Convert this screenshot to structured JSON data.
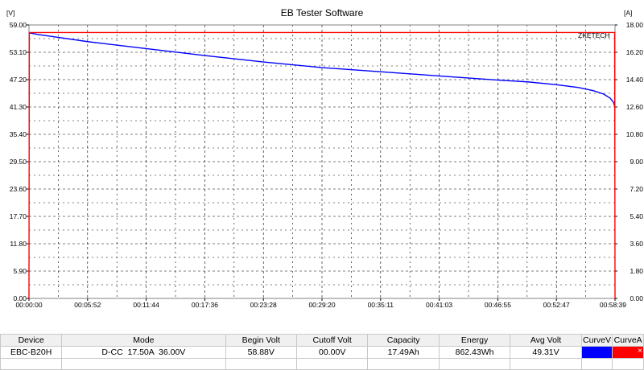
{
  "window": {
    "title": "EB Tester Software",
    "left_unit": "[V]",
    "right_unit": "[A]",
    "watermark": "ZKETECH"
  },
  "chart_data": {
    "type": "line",
    "title": "EB Tester Software",
    "ylabel": "[V]",
    "y2label": "[A]",
    "ylim": [
      0,
      59.0
    ],
    "y2lim": [
      0,
      18.0
    ],
    "xlim_seconds": [
      0,
      3519
    ],
    "x_tick_labels": [
      "00:00:00",
      "00:05:52",
      "00:11:44",
      "00:17:36",
      "00:23:28",
      "00:29:20",
      "00:35:11",
      "00:41:03",
      "00:46:55",
      "00:52:47",
      "00:58:39"
    ],
    "y_tick_labels": [
      "0.00",
      "5.90",
      "11.80",
      "17.70",
      "23.60",
      "29.50",
      "35.40",
      "41.30",
      "47.20",
      "53.10",
      "59.00"
    ],
    "y2_tick_labels": [
      "0.00",
      "1.80",
      "3.60",
      "5.40",
      "7.20",
      "9.00",
      "10.80",
      "12.60",
      "14.40",
      "16.20",
      "18.00"
    ],
    "grid": true,
    "series": [
      {
        "name": "CurveV",
        "color": "#0000ff",
        "axis": "left",
        "x": [
          "00:00:00",
          "00:01:00",
          "00:03:00",
          "00:05:52",
          "00:11:44",
          "00:17:36",
          "00:23:28",
          "00:29:20",
          "00:35:11",
          "00:41:03",
          "00:46:55",
          "00:50:00",
          "00:52:47",
          "00:55:00",
          "00:56:30",
          "00:57:30",
          "00:58:10",
          "00:58:30",
          "00:58:39"
        ],
        "values": [
          57.3,
          56.9,
          56.3,
          55.4,
          53.9,
          52.4,
          51.0,
          49.8,
          48.9,
          48.0,
          47.1,
          46.7,
          46.1,
          45.5,
          44.8,
          44.1,
          43.2,
          42.3,
          41.2
        ]
      },
      {
        "name": "CurveA",
        "color": "#ff0000",
        "axis": "right",
        "x": [
          "00:00:00",
          "00:00:02",
          "00:58:37",
          "00:58:39"
        ],
        "values": [
          0.0,
          17.5,
          17.5,
          0.0
        ]
      }
    ]
  },
  "table": {
    "headers": [
      "Device",
      "Mode",
      "Begin Volt",
      "Cutoff Volt",
      "Capacity",
      "Energy",
      "Avg Volt",
      "CurveV",
      "CurveA"
    ],
    "row": {
      "device": "EBC-B20H",
      "mode": "D-CC  17.50A  36.00V",
      "begin_volt": "58.88V",
      "cutoff_volt": "00.00V",
      "capacity": "17.49Ah",
      "energy": "862.43Wh",
      "avg_volt": "49.31V"
    },
    "curveV_color": "#0000ff",
    "curveA_color": "#ff0000",
    "close_glyph": "×"
  }
}
